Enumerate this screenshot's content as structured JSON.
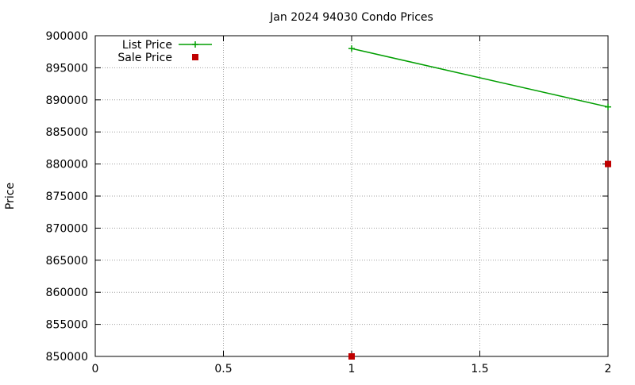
{
  "chart_data": {
    "type": "line",
    "title": "Jan 2024 94030 Condo Prices",
    "xlabel": "",
    "ylabel": "Price",
    "xlim": [
      0,
      2
    ],
    "ylim": [
      850000,
      900000
    ],
    "xticks": [
      0,
      0.5,
      1,
      1.5,
      2
    ],
    "xtick_labels": [
      "0",
      "0.5",
      "1",
      "1.5",
      "2"
    ],
    "yticks": [
      850000,
      855000,
      860000,
      865000,
      870000,
      875000,
      880000,
      885000,
      890000,
      895000,
      900000
    ],
    "ytick_labels": [
      "850000",
      "855000",
      "860000",
      "865000",
      "870000",
      "875000",
      "880000",
      "885000",
      "890000",
      "895000",
      "900000"
    ],
    "grid": true,
    "legend_position": "top-left",
    "series": [
      {
        "name": "List Price",
        "style": "line+cross",
        "color": "#009e00",
        "points": [
          {
            "x": 1,
            "y": 898000
          },
          {
            "x": 2,
            "y": 888900
          }
        ]
      },
      {
        "name": "Sale Price",
        "style": "square",
        "color": "#c00000",
        "points": [
          {
            "x": 1,
            "y": 850000
          },
          {
            "x": 2,
            "y": 880000
          }
        ]
      }
    ]
  }
}
